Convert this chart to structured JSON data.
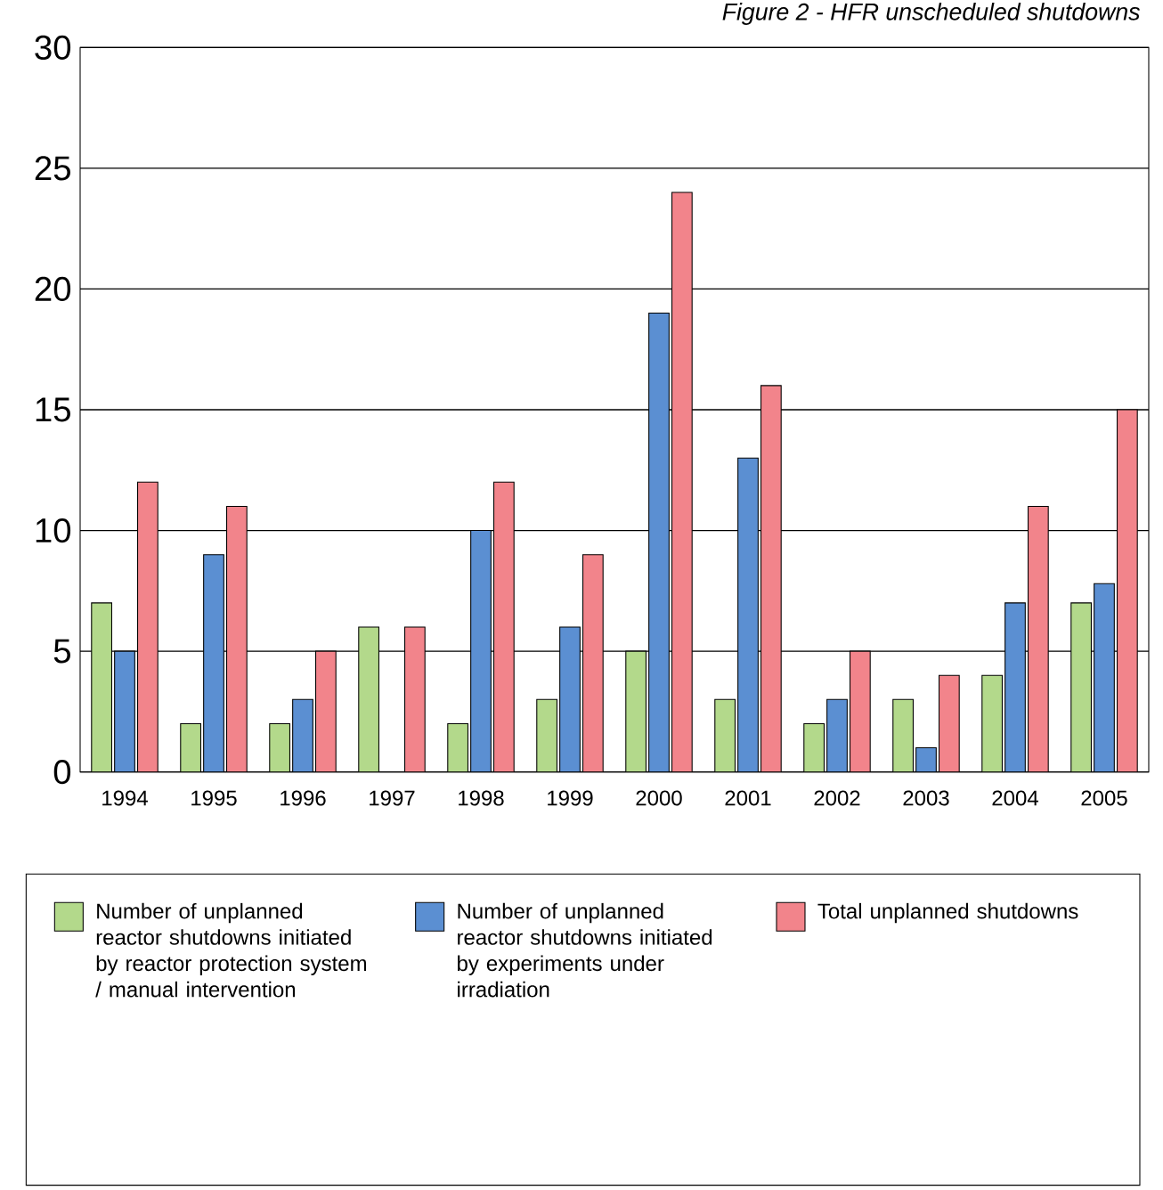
{
  "chart_data": {
    "type": "bar",
    "title": "Figure 2 - HFR unscheduled shutdowns",
    "categories": [
      "1994",
      "1995",
      "1996",
      "1997",
      "1998",
      "1999",
      "2000",
      "2001",
      "2002",
      "2003",
      "2004",
      "2005"
    ],
    "series": [
      {
        "name": "Number of unplanned reactor shutdowns initiated by reactor protection system / manual intervention",
        "color": "#b3d98b",
        "values": [
          7,
          2,
          2,
          6,
          2,
          3,
          5,
          3,
          2,
          3,
          4,
          7
        ]
      },
      {
        "name": "Number of unplanned reactor shutdowns initiated by experiments under irradiation",
        "color": "#5b8fd2",
        "values": [
          5,
          9,
          3,
          null,
          10,
          6,
          19,
          13,
          3,
          1,
          7,
          7.8
        ]
      },
      {
        "name": "Total unplanned shutdowns",
        "color": "#f2848b",
        "values": [
          12,
          11,
          5,
          6,
          12,
          9,
          24,
          16,
          5,
          4,
          11,
          15
        ]
      }
    ],
    "ylim": [
      0,
      30
    ],
    "yticks": [
      0,
      5,
      10,
      15,
      20,
      25,
      30
    ],
    "grid": "y",
    "legend": "bottom"
  }
}
